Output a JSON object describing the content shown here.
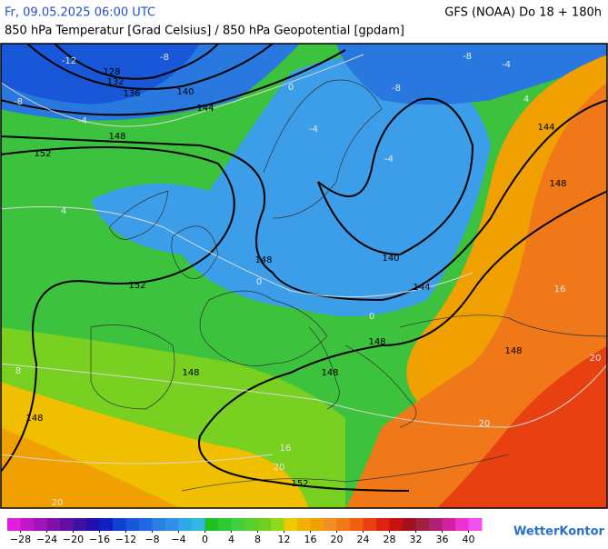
{
  "header": {
    "datetime": "Fr, 09.05.2025 06:00 UTC",
    "model": "GFS (NOAA) Do 18 + 180h",
    "subtitle": "850 hPa Temperatur [Grad Celsius] / 850 hPa Geopotential [gpdam]"
  },
  "map": {
    "geopotential_labels": [
      128,
      132,
      136,
      140,
      144,
      148,
      152,
      148,
      152,
      140,
      144,
      148,
      148,
      148,
      148,
      152,
      148,
      148,
      144
    ],
    "temperature_labels": [
      -12,
      -8,
      -8,
      -4,
      0,
      -4,
      -8,
      -8,
      -4,
      4,
      -4,
      0,
      0,
      4,
      8,
      16,
      20,
      20,
      20,
      20,
      16
    ]
  },
  "colorbar": {
    "range": [
      -30,
      42
    ],
    "ticks": [
      {
        "value": -28,
        "label": "−28"
      },
      {
        "value": -24,
        "label": "−24"
      },
      {
        "value": -20,
        "label": "−20"
      },
      {
        "value": -16,
        "label": "−16"
      },
      {
        "value": -12,
        "label": "−12"
      },
      {
        "value": -8,
        "label": "−8"
      },
      {
        "value": -4,
        "label": "−4"
      },
      0,
      4,
      8,
      12,
      16,
      20,
      24,
      28,
      32,
      36,
      40
    ],
    "colors": [
      "#e020e0",
      "#c018c8",
      "#a014b8",
      "#8010a8",
      "#6010a0",
      "#4010a0",
      "#2010b0",
      "#1020c0",
      "#1040d0",
      "#1858d8",
      "#2068e0",
      "#2880e4",
      "#3090e8",
      "#30a8e8",
      "#30b8e0",
      "#20c020",
      "#30c830",
      "#40d040",
      "#58d030",
      "#70d020",
      "#90d818",
      "#f0c800",
      "#f0b000",
      "#f0a000",
      "#f09020",
      "#f07818",
      "#f06010",
      "#e84010",
      "#e02010",
      "#c81010",
      "#a01020",
      "#a02040",
      "#b02070",
      "#d020a0",
      "#f030d0",
      "#f050f0"
    ]
  },
  "logo": "WetterKontor"
}
